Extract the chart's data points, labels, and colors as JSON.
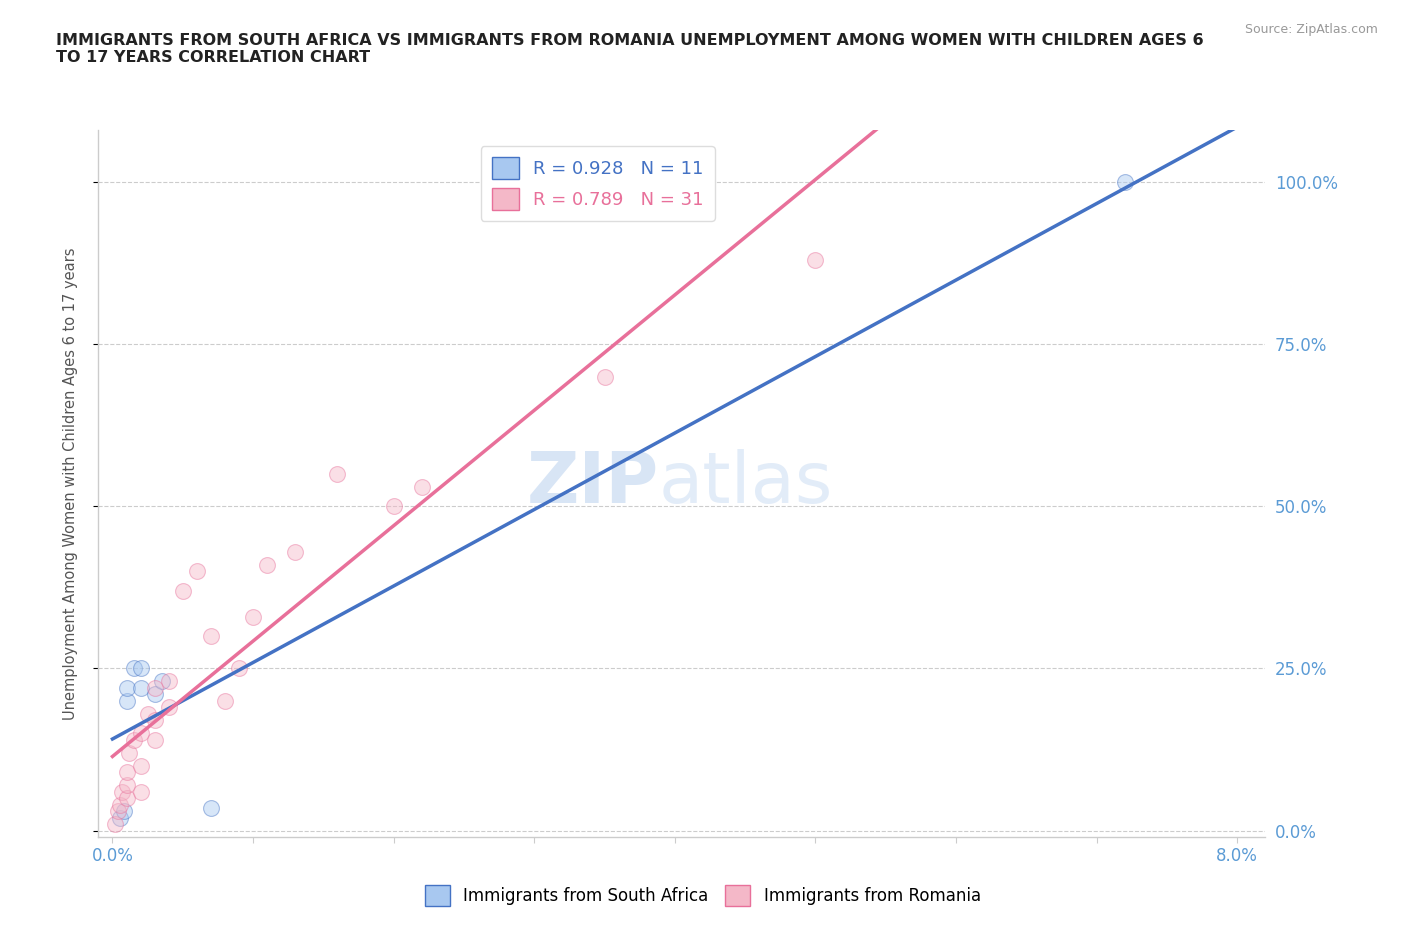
{
  "title": "IMMIGRANTS FROM SOUTH AFRICA VS IMMIGRANTS FROM ROMANIA UNEMPLOYMENT AMONG WOMEN WITH CHILDREN AGES 6\nTO 17 YEARS CORRELATION CHART",
  "source": "Source: ZipAtlas.com",
  "ylabel": "Unemployment Among Women with Children Ages 6 to 17 years",
  "x_ticks": [
    0.0,
    0.01,
    0.02,
    0.03,
    0.04,
    0.05,
    0.06,
    0.07,
    0.08
  ],
  "x_tick_labels": [
    "0.0%",
    "",
    "",
    "",
    "",
    "",
    "",
    "",
    "8.0%"
  ],
  "y_ticks": [
    0.0,
    0.25,
    0.5,
    0.75,
    1.0
  ],
  "y_tick_labels": [
    "0.0%",
    "25.0%",
    "50.0%",
    "75.0%",
    "100.0%"
  ],
  "xlim": [
    -0.001,
    0.082
  ],
  "ylim": [
    -0.01,
    1.08
  ],
  "blue_color": "#A8C8F0",
  "pink_color": "#F4B8C8",
  "blue_line_color": "#4472C4",
  "pink_line_color": "#E8709A",
  "blue_R": 0.928,
  "blue_N": 11,
  "pink_R": 0.789,
  "pink_N": 31,
  "legend_label_blue": "Immigrants from South Africa",
  "legend_label_pink": "Immigrants from Romania",
  "watermark": "ZIPAtlas",
  "blue_scatter_x": [
    0.0005,
    0.0008,
    0.001,
    0.001,
    0.0015,
    0.002,
    0.002,
    0.003,
    0.0035,
    0.007,
    0.072
  ],
  "blue_scatter_y": [
    0.02,
    0.03,
    0.2,
    0.22,
    0.25,
    0.22,
    0.25,
    0.21,
    0.23,
    0.035,
    1.0
  ],
  "pink_scatter_x": [
    0.0002,
    0.0004,
    0.0005,
    0.0007,
    0.001,
    0.001,
    0.001,
    0.0012,
    0.0015,
    0.002,
    0.002,
    0.002,
    0.0025,
    0.003,
    0.003,
    0.003,
    0.004,
    0.004,
    0.005,
    0.006,
    0.007,
    0.008,
    0.009,
    0.01,
    0.011,
    0.013,
    0.016,
    0.02,
    0.022,
    0.035,
    0.05
  ],
  "pink_scatter_y": [
    0.01,
    0.03,
    0.04,
    0.06,
    0.05,
    0.07,
    0.09,
    0.12,
    0.14,
    0.06,
    0.1,
    0.15,
    0.18,
    0.14,
    0.17,
    0.22,
    0.19,
    0.23,
    0.37,
    0.4,
    0.3,
    0.2,
    0.25,
    0.33,
    0.41,
    0.43,
    0.55,
    0.5,
    0.53,
    0.7,
    0.88
  ],
  "background_color": "#FFFFFF",
  "grid_color": "#CCCCCC",
  "tick_color": "#5B9BD5",
  "axis_color": "#CCCCCC",
  "title_color": "#222222",
  "marker_size": 130,
  "marker_alpha": 0.45,
  "right_ytick_color": "#5B9BD5"
}
